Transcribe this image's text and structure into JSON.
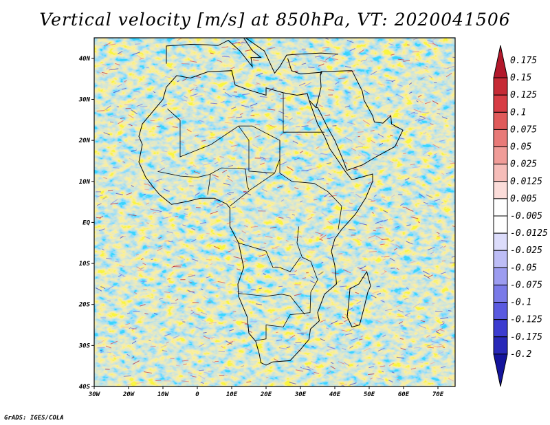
{
  "title": "Vertical velocity [m/s] at 850hPa, VT: 2020041506",
  "credit": "GrADS: IGES/COLA",
  "chart_data": {
    "type": "heatmap",
    "title": "Vertical velocity [m/s] at 850hPa, VT: 2020041506",
    "variable": "Vertical velocity",
    "units": "m/s",
    "level": "850hPa",
    "valid_time": "2020041506",
    "x_range": [
      -30,
      75
    ],
    "y_range": [
      -40,
      45
    ],
    "x_ticks": [
      {
        "value": -30,
        "label": "30W"
      },
      {
        "value": -20,
        "label": "20W"
      },
      {
        "value": -10,
        "label": "10W"
      },
      {
        "value": 0,
        "label": "0"
      },
      {
        "value": 10,
        "label": "10E"
      },
      {
        "value": 20,
        "label": "20E"
      },
      {
        "value": 30,
        "label": "30E"
      },
      {
        "value": 40,
        "label": "40E"
      },
      {
        "value": 50,
        "label": "50E"
      },
      {
        "value": 60,
        "label": "60E"
      },
      {
        "value": 70,
        "label": "70E"
      }
    ],
    "y_ticks": [
      {
        "value": 40,
        "label": "40N"
      },
      {
        "value": 30,
        "label": "30N"
      },
      {
        "value": 20,
        "label": "20N"
      },
      {
        "value": 10,
        "label": "10N"
      },
      {
        "value": 0,
        "label": "EQ"
      },
      {
        "value": -10,
        "label": "10S"
      },
      {
        "value": -20,
        "label": "20S"
      },
      {
        "value": -30,
        "label": "30S"
      },
      {
        "value": -40,
        "label": "40S"
      }
    ],
    "colorbar": {
      "levels": [
        "0.175",
        "0.15",
        "0.125",
        "0.1",
        "0.075",
        "0.05",
        "0.025",
        "0.0125",
        "0.005",
        "-0.005",
        "-0.0125",
        "-0.025",
        "-0.05",
        "-0.075",
        "-0.1",
        "-0.125",
        "-0.175",
        "-0.2"
      ],
      "colors": [
        "#b2182b",
        "#c62a35",
        "#d73c44",
        "#e05a5a",
        "#e87a78",
        "#f09c98",
        "#f6bdb9",
        "#fbdcd9",
        "#ffffff",
        "#ffffff",
        "#dcdcfb",
        "#bdbdf6",
        "#9c9cf0",
        "#7a7ae8",
        "#5a5ae0",
        "#3c3cd0",
        "#2828b8",
        "#14149c"
      ]
    }
  }
}
